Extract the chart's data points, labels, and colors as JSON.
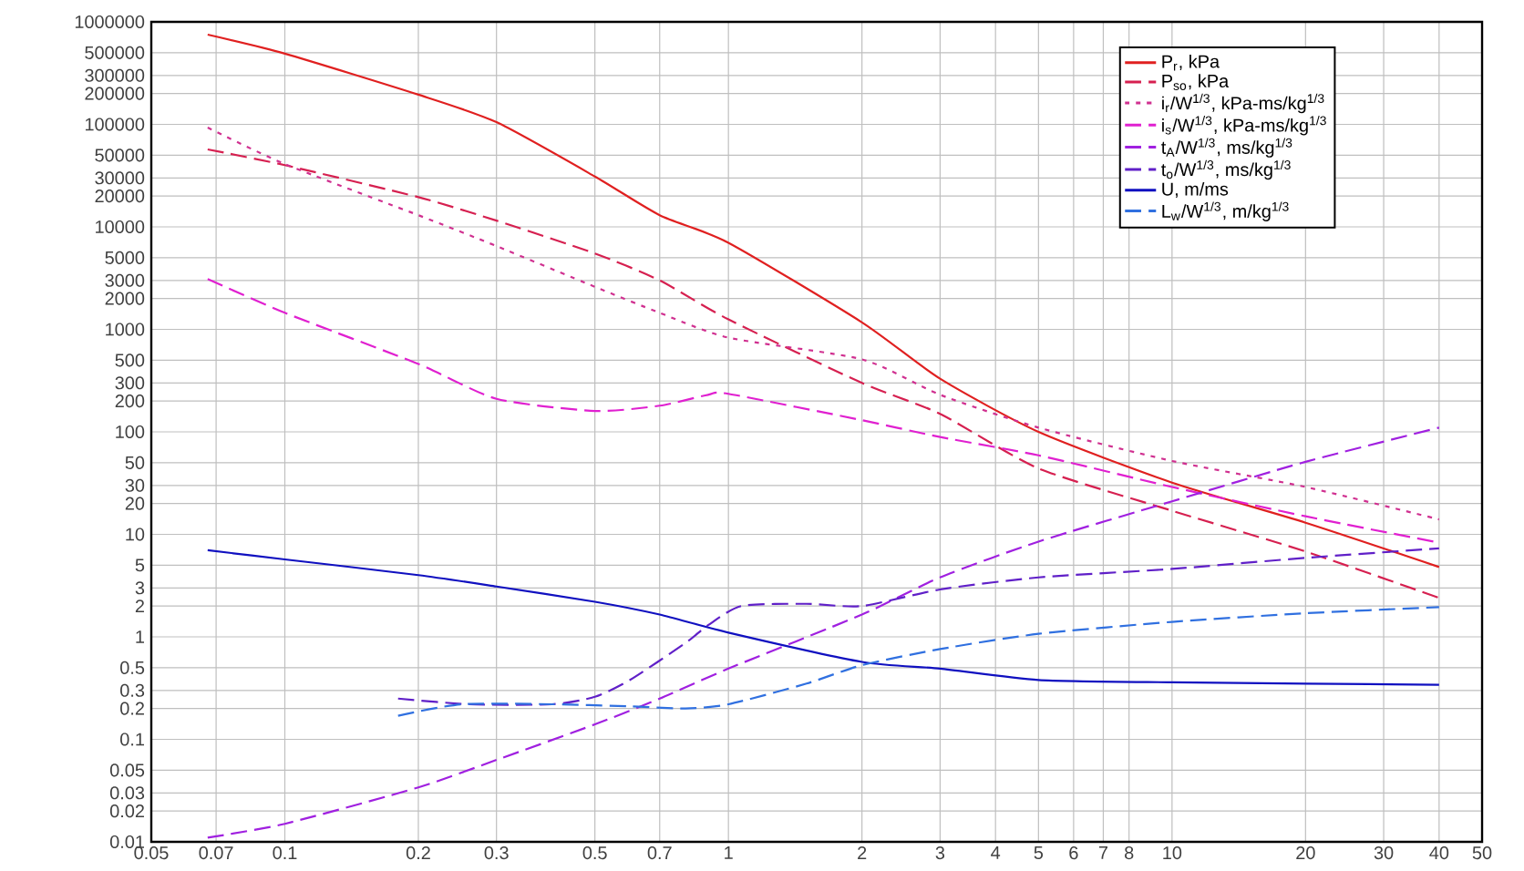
{
  "chart_data": {
    "type": "line",
    "log": "xy",
    "grid": true,
    "legend": "top right",
    "xlim": [
      0.05,
      50
    ],
    "ylim": [
      0.01,
      1000000
    ],
    "xticks": [
      0.05,
      0.07,
      0.1,
      0.2,
      0.3,
      0.5,
      0.7,
      1,
      2,
      3,
      4,
      5,
      6,
      7,
      8,
      10,
      20,
      30,
      40,
      50
    ],
    "yticks": [
      0.01,
      0.02,
      0.03,
      0.05,
      0.1,
      0.2,
      0.3,
      0.5,
      1,
      2,
      3,
      5,
      10,
      20,
      30,
      50,
      100,
      200,
      300,
      500,
      1000,
      2000,
      3000,
      5000,
      10000,
      20000,
      30000,
      50000,
      100000,
      200000,
      300000,
      500000,
      1000000
    ],
    "series": [
      {
        "name": "P$_{r}$, kPa",
        "color": "#e02020",
        "line_style": "solid",
        "x": [
          0.067,
          0.1,
          0.2,
          0.3,
          0.5,
          0.7,
          1,
          2,
          3,
          5,
          10,
          20,
          40
        ],
        "values": [
          750000,
          490000,
          195000,
          105000,
          31000,
          13000,
          7000,
          1170,
          330,
          100,
          32,
          13,
          4.8
        ]
      },
      {
        "name": "P$_{so}$, kPa",
        "color": "#d62050",
        "line_style": "dashed",
        "x": [
          0.067,
          0.1,
          0.2,
          0.3,
          0.5,
          0.7,
          1,
          2,
          3,
          5,
          10,
          20,
          40
        ],
        "values": [
          57000,
          40000,
          19500,
          11500,
          5500,
          3000,
          1250,
          300,
          150,
          44,
          17,
          6.8,
          2.4
        ]
      },
      {
        "name": "i$_{r}$/W$^{1/3}$, kPa-ms/kg$^{1/3}$",
        "color": "#d03090",
        "line_style": "dotted",
        "x": [
          0.067,
          0.1,
          0.2,
          0.3,
          0.5,
          0.7,
          1,
          2,
          3,
          5,
          10,
          20,
          40
        ],
        "values": [
          93000,
          41000,
          13000,
          6500,
          2600,
          1450,
          830,
          510,
          230,
          110,
          52,
          29,
          14
        ]
      },
      {
        "name": "i$_{s}$/W$^{1/3}$, kPa-ms/kg$^{1/3}$",
        "color": "#e020d0",
        "line_style": "dashed",
        "x": [
          0.067,
          0.1,
          0.2,
          0.3,
          0.5,
          0.7,
          0.9,
          1,
          2,
          3,
          5,
          10,
          20,
          40
        ],
        "values": [
          3100,
          1450,
          460,
          210,
          160,
          180,
          230,
          235,
          130,
          89,
          59,
          29,
          15,
          8.3
        ]
      },
      {
        "name": "t$_{A}$/W$^{1/3}$, ms/kg$^{1/3}$",
        "color": "#a020e0",
        "line_style": "dashed",
        "x": [
          0.067,
          0.1,
          0.2,
          0.3,
          0.5,
          0.7,
          1,
          2,
          3,
          5,
          10,
          20,
          40
        ],
        "values": [
          0.011,
          0.015,
          0.034,
          0.063,
          0.14,
          0.25,
          0.49,
          1.65,
          3.8,
          8.5,
          21,
          51,
          110
        ]
      },
      {
        "name": "t$_{o}$/W$^{1/3}$, ms/kg$^{1/3}$",
        "color": "#6020c8",
        "line_style": "dashed",
        "x": [
          0.18,
          0.26,
          0.4,
          0.5,
          0.6,
          0.8,
          0.9,
          1.07,
          1.5,
          2,
          3,
          5,
          10,
          20,
          40
        ],
        "values": [
          0.25,
          0.22,
          0.22,
          0.26,
          0.38,
          0.87,
          1.3,
          2.0,
          2.1,
          2.0,
          2.9,
          3.8,
          4.6,
          5.9,
          7.3
        ]
      },
      {
        "name": "U, m/ms",
        "color": "#1010c0",
        "line_style": "solid",
        "x": [
          0.067,
          0.1,
          0.2,
          0.3,
          0.5,
          0.7,
          1,
          2,
          3,
          5,
          10,
          20,
          40
        ],
        "values": [
          7.0,
          5.7,
          4.0,
          3.1,
          2.2,
          1.65,
          1.1,
          0.57,
          0.49,
          0.38,
          0.36,
          0.35,
          0.34
        ]
      },
      {
        "name": "L$_{w}$/W$^{1/3}$, m/kg$^{1/3}$",
        "color": "#3070e0",
        "line_style": "dashed",
        "x": [
          0.18,
          0.25,
          0.4,
          0.6,
          0.8,
          1,
          1.5,
          2,
          3,
          5,
          10,
          20,
          40
        ],
        "values": [
          0.17,
          0.22,
          0.22,
          0.21,
          0.2,
          0.22,
          0.35,
          0.53,
          0.76,
          1.07,
          1.4,
          1.7,
          1.95
        ]
      }
    ]
  }
}
